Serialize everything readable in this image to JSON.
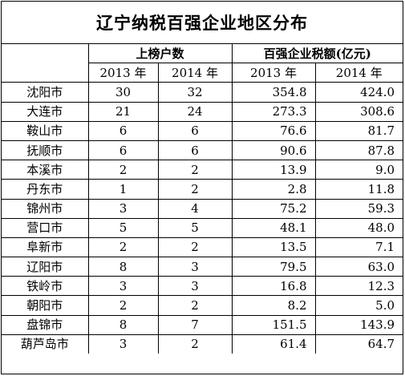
{
  "title": "辽宁纳税百强企业地区分布",
  "headers": {
    "group1": "上榜户数",
    "group2": "百强企业税额(亿元)",
    "y2013": "2013 年",
    "y2014": "2014 年"
  },
  "rows": [
    {
      "city": "沈阳市",
      "count2013": "30",
      "count2014": "32",
      "tax2013": "354.8",
      "tax2014": "424.0"
    },
    {
      "city": "大连市",
      "count2013": "21",
      "count2014": "24",
      "tax2013": "273.3",
      "tax2014": "308.6"
    },
    {
      "city": "鞍山市",
      "count2013": "6",
      "count2014": "6",
      "tax2013": "76.6",
      "tax2014": "81.7"
    },
    {
      "city": "抚顺市",
      "count2013": "6",
      "count2014": "6",
      "tax2013": "90.6",
      "tax2014": "87.8"
    },
    {
      "city": "本溪市",
      "count2013": "2",
      "count2014": "2",
      "tax2013": "13.9",
      "tax2014": "9.0"
    },
    {
      "city": "丹东市",
      "count2013": "1",
      "count2014": "2",
      "tax2013": "2.8",
      "tax2014": "11.8"
    },
    {
      "city": "锦州市",
      "count2013": "3",
      "count2014": "4",
      "tax2013": "75.2",
      "tax2014": "59.3"
    },
    {
      "city": "营口市",
      "count2013": "5",
      "count2014": "5",
      "tax2013": "48.1",
      "tax2014": "48.0"
    },
    {
      "city": "阜新市",
      "count2013": "2",
      "count2014": "2",
      "tax2013": "13.5",
      "tax2014": "7.1"
    },
    {
      "city": "辽阳市",
      "count2013": "8",
      "count2014": "3",
      "tax2013": "79.5",
      "tax2014": "63.0"
    },
    {
      "city": "铁岭市",
      "count2013": "3",
      "count2014": "3",
      "tax2013": "16.8",
      "tax2014": "12.3"
    },
    {
      "city": "朝阳市",
      "count2013": "2",
      "count2014": "2",
      "tax2013": "8.2",
      "tax2014": "5.0"
    },
    {
      "city": "盘锦市",
      "count2013": "8",
      "count2014": "7",
      "tax2013": "151.5",
      "tax2014": "143.9"
    },
    {
      "city": "葫芦岛市",
      "count2013": "3",
      "count2014": "2",
      "tax2013": "61.4",
      "tax2014": "64.7"
    }
  ]
}
